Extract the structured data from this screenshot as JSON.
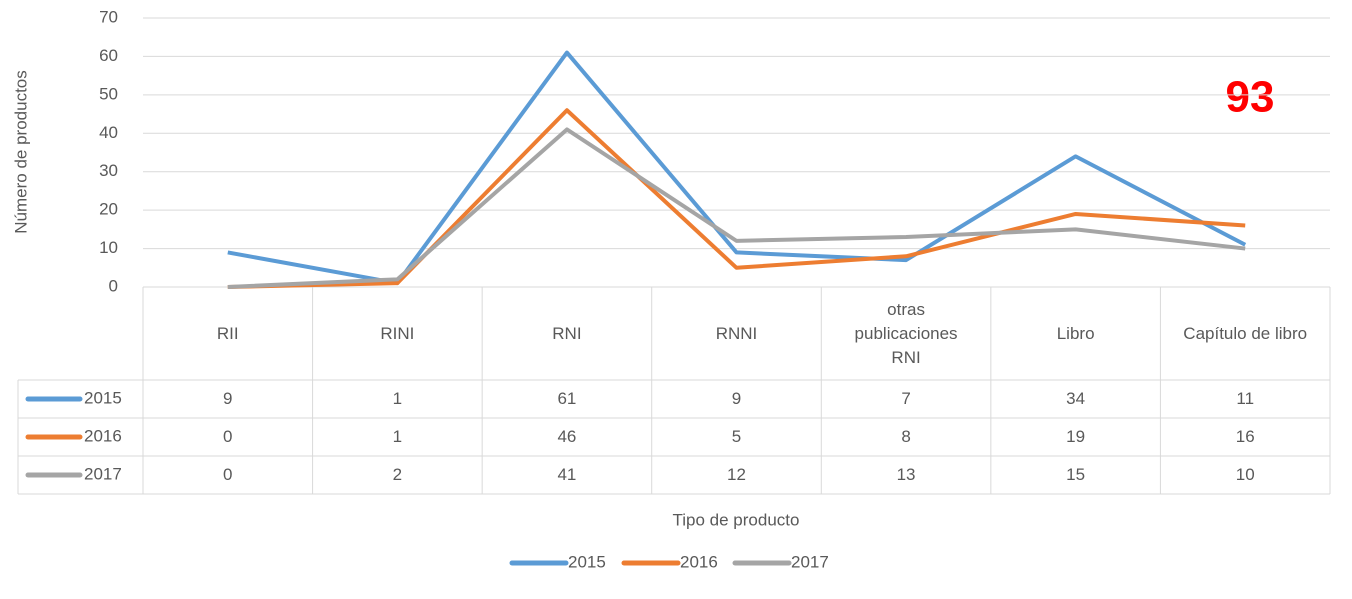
{
  "chart_data": {
    "type": "line",
    "y_label": "Número de productos",
    "x_label": "Tipo de producto",
    "annotation": "93",
    "categories": [
      "RII",
      "RINI",
      "RNI",
      "RNNI",
      "otras publicaciones RNI",
      "Libro",
      "Capítulo de libro"
    ],
    "series": [
      {
        "name": "2015",
        "color": "#5b9bd5",
        "values": [
          9,
          1,
          61,
          9,
          7,
          34,
          11
        ]
      },
      {
        "name": "2016",
        "color": "#ed7d31",
        "values": [
          0,
          1,
          46,
          5,
          8,
          19,
          16
        ]
      },
      {
        "name": "2017",
        "color": "#a5a5a5",
        "values": [
          0,
          2,
          41,
          12,
          13,
          15,
          10
        ]
      }
    ],
    "ylim": [
      0,
      70
    ],
    "yticks": [
      0,
      10,
      20,
      30,
      40,
      50,
      60,
      70
    ],
    "grid": true,
    "legend": "bottom",
    "data_table": true
  }
}
